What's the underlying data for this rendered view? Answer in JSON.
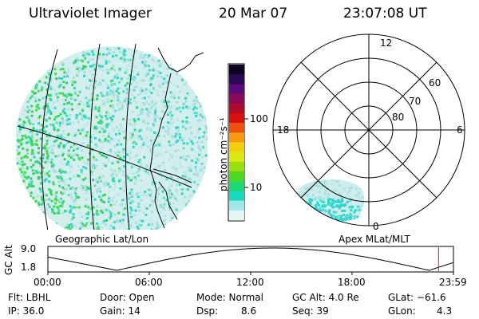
{
  "header": {
    "instrument": "Ultraviolet Imager",
    "date": "20 Mar 07",
    "time": "23:07:08 UT"
  },
  "colorbar": {
    "unit_label": "photon cm⁻²s⁻¹",
    "ticks": [
      {
        "label": "100",
        "value": 100
      },
      {
        "label": "10",
        "value": 10
      }
    ]
  },
  "geo_panel": {
    "label": "Geographic Lat/Lon"
  },
  "polar_panel": {
    "label": "Apex MLat/MLT",
    "mlt_labels": {
      "top": "12",
      "left": "18",
      "right": "6",
      "bottom": "0"
    },
    "lat_labels": [
      "60",
      "70",
      "80"
    ]
  },
  "altitude_strip": {
    "ylabel": "GC Alt",
    "yticks": [
      "9.0",
      "1.8"
    ],
    "xticks": [
      "00:00",
      "06:00",
      "12:00",
      "18:00",
      "23:59"
    ],
    "current_marker_time": "23:07",
    "marker_color": "#cc2222"
  },
  "info": {
    "filter": "Flt: LBHL",
    "door": "Door: Open",
    "mode": "Mode: Normal",
    "gc_alt": "GC Alt: 4.0 Re",
    "glat": "GLat: −61.6",
    "ip": "IP: 36.0",
    "gain": "Gain: 14",
    "dsp_label": "Dsp:",
    "dsp_value": "8.6",
    "seq": "Seq: 39",
    "glon_label": "GLon:",
    "glon_value": "4.3"
  }
}
